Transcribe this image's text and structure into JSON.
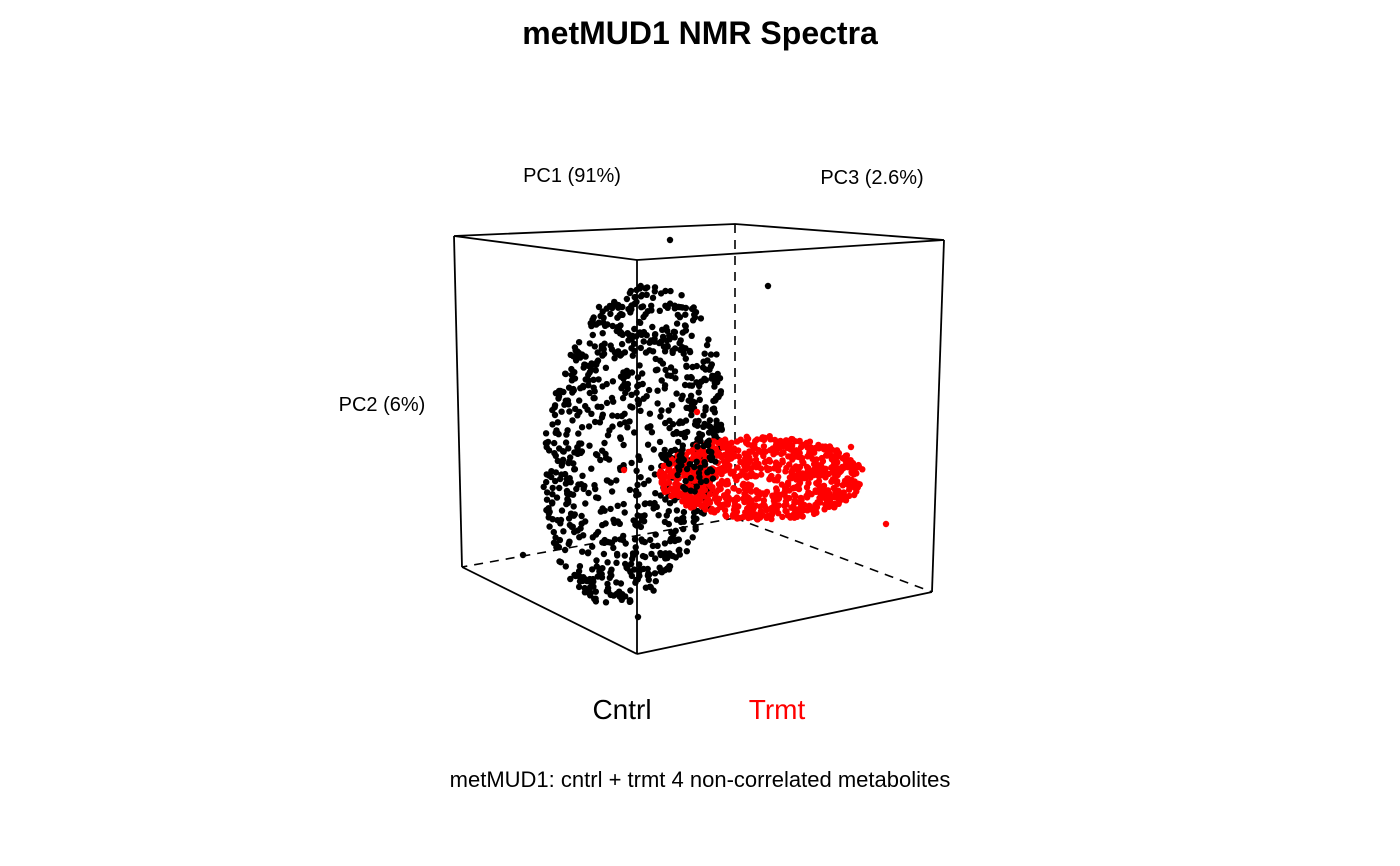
{
  "chart_data": {
    "type": "scatter",
    "title": "metMUD1 NMR Spectra",
    "subtitle": "metMUD1: cntrl + trmt 4 non-correlated metabolites",
    "axes": {
      "pc1_label": "PC1 (91%)",
      "pc2_label": "PC2 (6%)",
      "pc3_label": "PC3 (2.6%)"
    },
    "series": [
      {
        "name": "Cntrl",
        "color": "#000000",
        "shape": "filled ellipsoid shell of points",
        "approx_points": 900,
        "outliers": 6
      },
      {
        "name": "Trmt",
        "color": "#ff0000",
        "shape": "flat disc of points",
        "approx_points": 800,
        "outliers": 4
      }
    ],
    "legend_position": "bottom-center",
    "box": "3D perspective cube with dashed hidden edges"
  }
}
